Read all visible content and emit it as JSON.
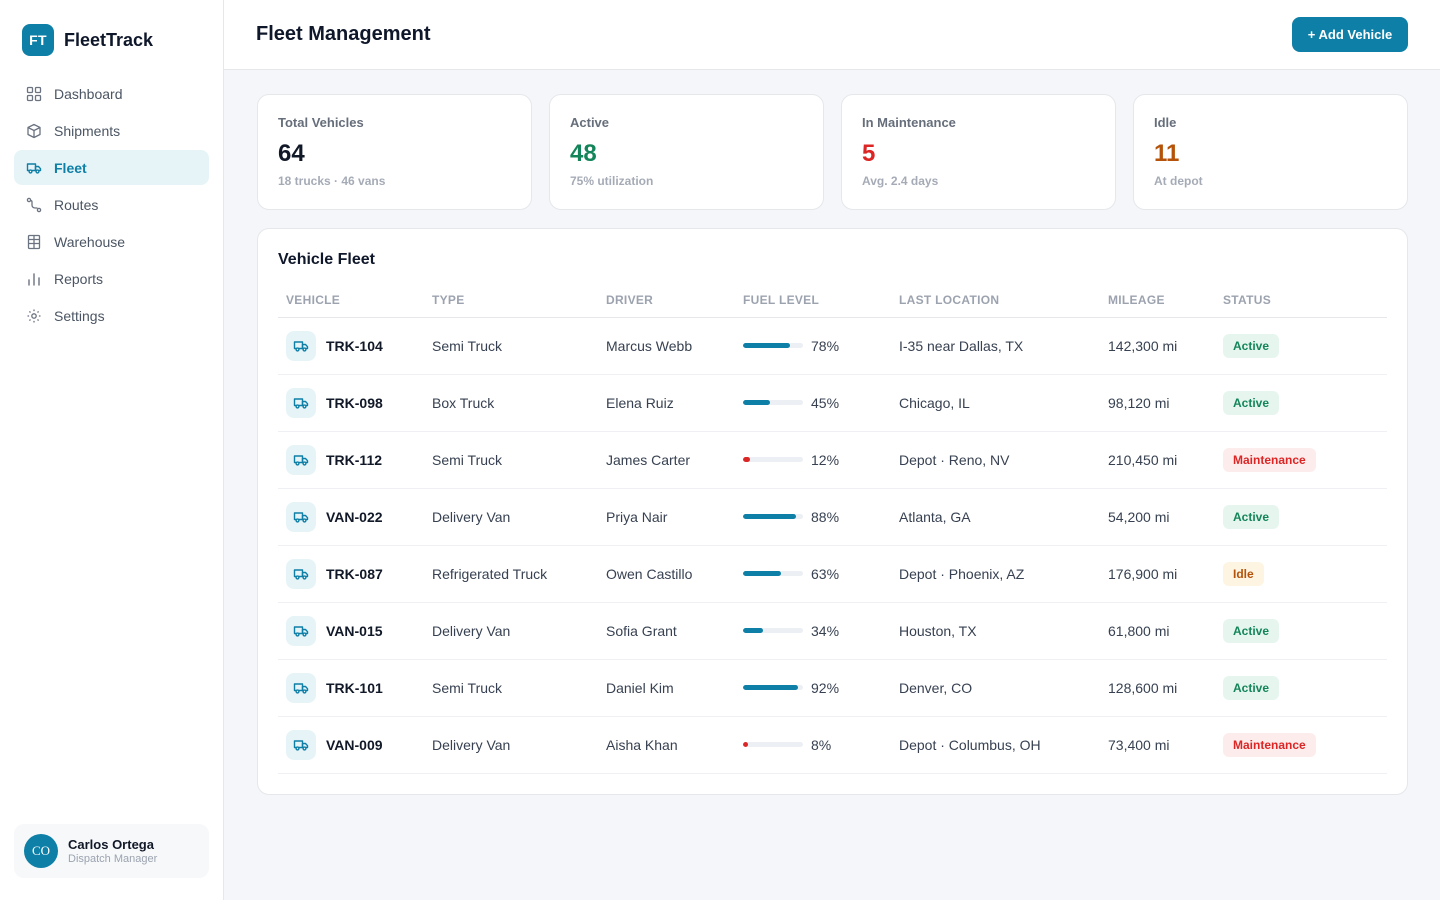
{
  "brand": {
    "logo": "FT",
    "name": "FleetTrack"
  },
  "nav": [
    {
      "label": "Dashboard",
      "icon": "grid-icon",
      "active": false
    },
    {
      "label": "Shipments",
      "icon": "box-icon",
      "active": false
    },
    {
      "label": "Fleet",
      "icon": "truck-icon",
      "active": true
    },
    {
      "label": "Routes",
      "icon": "route-icon",
      "active": false
    },
    {
      "label": "Warehouse",
      "icon": "warehouse-icon",
      "active": false
    },
    {
      "label": "Reports",
      "icon": "bar-chart-icon",
      "active": false
    },
    {
      "label": "Settings",
      "icon": "gear-icon",
      "active": false
    }
  ],
  "user": {
    "initials": "CO",
    "name": "Carlos Ortega",
    "role": "Dispatch Manager"
  },
  "header": {
    "title": "Fleet Management",
    "add_label": "+ Add Vehicle"
  },
  "stats": [
    {
      "label": "Total Vehicles",
      "value": "64",
      "sub": "18 trucks · 46 vans",
      "color": "#111827"
    },
    {
      "label": "Active",
      "value": "48",
      "sub": "75% utilization",
      "color": "#14855a"
    },
    {
      "label": "In Maintenance",
      "value": "5",
      "sub": "Avg. 2.4 days",
      "color": "#dc2626"
    },
    {
      "label": "Idle",
      "value": "11",
      "sub": "At depot",
      "color": "#b45309"
    }
  ],
  "fleet": {
    "title": "Vehicle Fleet",
    "columns": [
      "VEHICLE",
      "TYPE",
      "DRIVER",
      "FUEL LEVEL",
      "LAST LOCATION",
      "MILEAGE",
      "STATUS"
    ],
    "rows": [
      {
        "id": "TRK-104",
        "type": "Semi Truck",
        "driver": "Marcus Webb",
        "fuel": 78,
        "fuel_label": "78%",
        "location": "I-35 near Dallas, TX",
        "mileage": "142,300 mi",
        "status": "Active",
        "status_kind": "active"
      },
      {
        "id": "TRK-098",
        "type": "Box Truck",
        "driver": "Elena Ruiz",
        "fuel": 45,
        "fuel_label": "45%",
        "location": "Chicago, IL",
        "mileage": "98,120 mi",
        "status": "Active",
        "status_kind": "active"
      },
      {
        "id": "TRK-112",
        "type": "Semi Truck",
        "driver": "James Carter",
        "fuel": 12,
        "fuel_label": "12%",
        "location": "Depot · Reno, NV",
        "mileage": "210,450 mi",
        "status": "Maintenance",
        "status_kind": "maintenance"
      },
      {
        "id": "VAN-022",
        "type": "Delivery Van",
        "driver": "Priya Nair",
        "fuel": 88,
        "fuel_label": "88%",
        "location": "Atlanta, GA",
        "mileage": "54,200 mi",
        "status": "Active",
        "status_kind": "active"
      },
      {
        "id": "TRK-087",
        "type": "Refrigerated Truck",
        "driver": "Owen Castillo",
        "fuel": 63,
        "fuel_label": "63%",
        "location": "Depot · Phoenix, AZ",
        "mileage": "176,900 mi",
        "status": "Idle",
        "status_kind": "idle"
      },
      {
        "id": "VAN-015",
        "type": "Delivery Van",
        "driver": "Sofia Grant",
        "fuel": 34,
        "fuel_label": "34%",
        "location": "Houston, TX",
        "mileage": "61,800 mi",
        "status": "Active",
        "status_kind": "active"
      },
      {
        "id": "TRK-101",
        "type": "Semi Truck",
        "driver": "Daniel Kim",
        "fuel": 92,
        "fuel_label": "92%",
        "location": "Denver, CO",
        "mileage": "128,600 mi",
        "status": "Active",
        "status_kind": "active"
      },
      {
        "id": "VAN-009",
        "type": "Delivery Van",
        "driver": "Aisha Khan",
        "fuel": 8,
        "fuel_label": "8%",
        "location": "Depot · Columbus, OH",
        "mileage": "73,400 mi",
        "status": "Maintenance",
        "status_kind": "maintenance"
      }
    ]
  },
  "colors": {
    "accent": "#0e7fa6",
    "low_fuel": "#dc2626"
  }
}
